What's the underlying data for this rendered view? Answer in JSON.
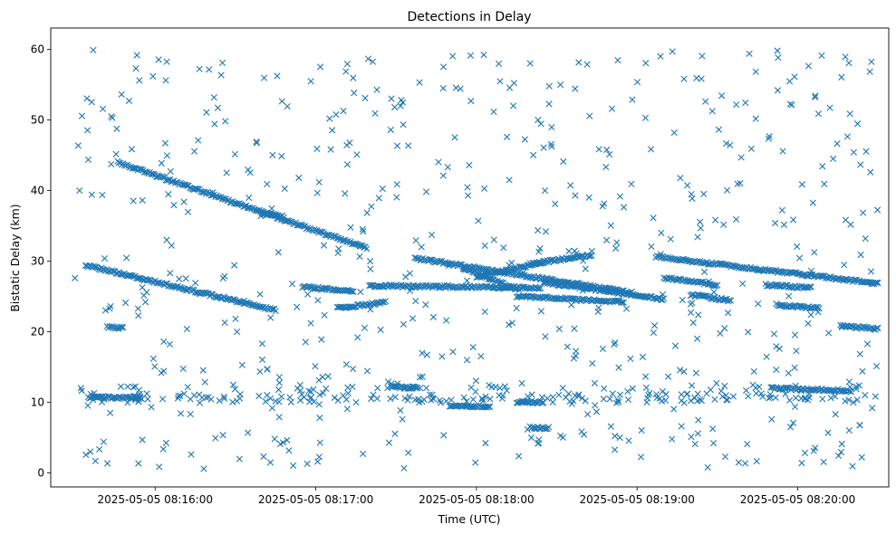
{
  "chart_data": {
    "type": "scatter",
    "title": "Detections in Delay",
    "xlabel": "Time (UTC)",
    "ylabel": "Bistatic Delay (km)",
    "x_unit": "time",
    "xlim": [
      "2025-05-05 08:15:21",
      "2025-05-05 08:20:34"
    ],
    "ylim": [
      -2,
      63
    ],
    "x_ticks": [
      {
        "value": "2025-05-05 08:16:00",
        "label": "2025-05-05 08:16:00"
      },
      {
        "value": "2025-05-05 08:17:00",
        "label": "2025-05-05 08:17:00"
      },
      {
        "value": "2025-05-05 08:18:00",
        "label": "2025-05-05 08:18:00"
      },
      {
        "value": "2025-05-05 08:19:00",
        "label": "2025-05-05 08:19:00"
      },
      {
        "value": "2025-05-05 08:20:00",
        "label": "2025-05-05 08:20:00"
      }
    ],
    "y_ticks": [
      0,
      10,
      20,
      30,
      40,
      50,
      60
    ],
    "grid": false,
    "legend": "none",
    "marker": "x",
    "color": "#1f77b4",
    "tracks": [
      {
        "start": [
          "2025-05-05 08:15:34",
          29.4
        ],
        "end": [
          "2025-05-05 08:16:45",
          23.0
        ]
      },
      {
        "start": [
          "2025-05-05 08:15:46",
          44.0
        ],
        "end": [
          "2025-05-05 08:17:19",
          31.8
        ]
      },
      {
        "start": [
          "2025-05-05 08:16:40",
          36.8
        ],
        "end": [
          "2025-05-05 08:16:48",
          36.3
        ]
      },
      {
        "start": [
          "2025-05-05 08:16:55",
          26.4
        ],
        "end": [
          "2025-05-05 08:17:14",
          25.7
        ]
      },
      {
        "start": [
          "2025-05-05 08:17:08",
          23.3
        ],
        "end": [
          "2025-05-05 08:17:26",
          24.2
        ]
      },
      {
        "start": [
          "2025-05-05 08:17:20",
          26.5
        ],
        "end": [
          "2025-05-05 08:18:24",
          26.2
        ]
      },
      {
        "start": [
          "2025-05-05 08:17:37",
          30.4
        ],
        "end": [
          "2025-05-05 08:18:58",
          25.5
        ]
      },
      {
        "start": [
          "2025-05-05 08:17:55",
          29.0
        ],
        "end": [
          "2025-05-05 08:18:15",
          26.0
        ]
      },
      {
        "start": [
          "2025-05-05 08:18:00",
          27.8
        ],
        "end": [
          "2025-05-05 08:18:25",
          29.8
        ]
      },
      {
        "start": [
          "2025-05-05 08:18:20",
          29.6
        ],
        "end": [
          "2025-05-05 08:18:43",
          30.8
        ]
      },
      {
        "start": [
          "2025-05-05 08:18:15",
          25.0
        ],
        "end": [
          "2025-05-05 08:18:55",
          24.2
        ]
      },
      {
        "start": [
          "2025-05-05 08:18:25",
          27.0
        ],
        "end": [
          "2025-05-05 08:19:10",
          24.6
        ]
      },
      {
        "start": [
          "2025-05-05 08:19:07",
          30.6
        ],
        "end": [
          "2025-05-05 08:20:30",
          26.8
        ]
      },
      {
        "start": [
          "2025-05-05 08:19:10",
          27.6
        ],
        "end": [
          "2025-05-05 08:19:30",
          26.6
        ]
      },
      {
        "start": [
          "2025-05-05 08:19:20",
          25.2
        ],
        "end": [
          "2025-05-05 08:19:35",
          24.4
        ]
      },
      {
        "start": [
          "2025-05-05 08:19:48",
          26.6
        ],
        "end": [
          "2025-05-05 08:20:05",
          26.2
        ]
      },
      {
        "start": [
          "2025-05-05 08:19:52",
          23.8
        ],
        "end": [
          "2025-05-05 08:20:08",
          23.3
        ]
      },
      {
        "start": [
          "2025-05-05 08:20:16",
          20.8
        ],
        "end": [
          "2025-05-05 08:20:30",
          20.4
        ]
      },
      {
        "start": [
          "2025-05-05 08:15:35",
          10.7
        ],
        "end": [
          "2025-05-05 08:15:55",
          10.6
        ]
      },
      {
        "start": [
          "2025-05-05 08:17:28",
          12.2
        ],
        "end": [
          "2025-05-05 08:17:38",
          12.0
        ]
      },
      {
        "start": [
          "2025-05-05 08:17:50",
          9.5
        ],
        "end": [
          "2025-05-05 08:18:05",
          9.4
        ]
      },
      {
        "start": [
          "2025-05-05 08:18:15",
          10.0
        ],
        "end": [
          "2025-05-05 08:18:25",
          10.0
        ]
      },
      {
        "start": [
          "2025-05-05 08:18:20",
          6.4
        ],
        "end": [
          "2025-05-05 08:18:27",
          6.3
        ]
      },
      {
        "start": [
          "2025-05-05 08:19:50",
          12.0
        ],
        "end": [
          "2025-05-05 08:20:20",
          11.6
        ]
      },
      {
        "start": [
          "2025-05-05 08:15:42",
          20.6
        ],
        "end": [
          "2025-05-05 08:15:48",
          20.6
        ]
      }
    ],
    "clutter_bands": [
      {
        "y": 10.6,
        "count": 160,
        "spread": 1.4
      },
      {
        "y": 12.0,
        "count": 40,
        "spread": 1.0
      }
    ],
    "noise": {
      "count": 600,
      "y_range": [
        0.5,
        60
      ],
      "x_range": [
        "2025-05-05 08:15:30",
        "2025-05-05 08:20:30"
      ]
    }
  }
}
